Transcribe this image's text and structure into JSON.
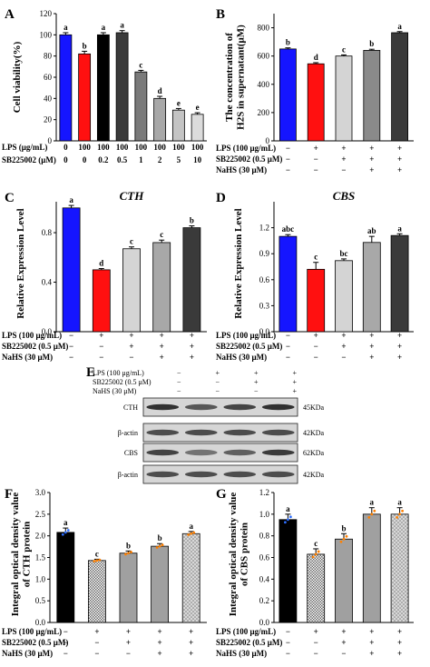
{
  "colors": {
    "blue": "#1515ff",
    "red": "#ff1010",
    "light_gray": "#d4d4d4",
    "mid_gray": "#a8a8a8",
    "dark_gray": "#7a7a7a",
    "charcoal": "#3a3a3a",
    "black": "#000000",
    "orange_points": "#ff8000",
    "blue_points": "#2f6fff"
  },
  "chart_data": [
    {
      "panel": "A",
      "type": "bar",
      "ylabel": "Cell viability(%)",
      "ylim": [
        0,
        120
      ],
      "yticks": [
        0,
        20,
        40,
        60,
        80,
        100,
        120
      ],
      "values": [
        100,
        82,
        100,
        102,
        65,
        40,
        29,
        25
      ],
      "errors": [
        2,
        2.5,
        2,
        2,
        1.5,
        2,
        1.5,
        1.5
      ],
      "letters": [
        "a",
        "b",
        "a",
        "a",
        "c",
        "d",
        "e",
        "e"
      ],
      "colors": [
        "#1515ff",
        "#ff1010",
        "#000000",
        "#3a3a3a",
        "#7a7a7a",
        "#a8a8a8",
        "#c4c4c4",
        "#dcdcdc"
      ],
      "conditions": [
        {
          "label": "LPS (μg/mL)",
          "values": [
            "0",
            "100",
            "100",
            "100",
            "100",
            "100",
            "100",
            "100"
          ]
        },
        {
          "label": "SB225002 (μM)",
          "values": [
            "0",
            "0",
            "0.2",
            "0.5",
            "1",
            "2",
            "5",
            "10"
          ]
        }
      ]
    },
    {
      "panel": "B",
      "type": "bar",
      "ylabel": "The concentration of H2S in supernatant(μM)",
      "ylim": [
        0,
        900
      ],
      "yticks": [
        0,
        200,
        400,
        600,
        800
      ],
      "values": [
        650,
        545,
        600,
        640,
        765
      ],
      "errors": [
        8,
        8,
        8,
        8,
        8
      ],
      "letters": [
        "b",
        "d",
        "c",
        "b",
        "a"
      ],
      "colors": [
        "#1515ff",
        "#ff1010",
        "#d4d4d4",
        "#8a8a8a",
        "#3a3a3a"
      ],
      "conditions": [
        {
          "label": "LPS (100 μg/mL)",
          "values": [
            "−",
            "+",
            "+",
            "+",
            "+"
          ]
        },
        {
          "label": "SB225002 (0.5 μM)",
          "values": [
            "−",
            "−",
            "+",
            "+",
            "+"
          ]
        },
        {
          "label": "NaHS (30 μM)",
          "values": [
            "−",
            "−",
            "−",
            "+",
            "+"
          ]
        }
      ]
    },
    {
      "panel": "C",
      "type": "bar",
      "title": "CTH",
      "ylabel": "Relative Expression Level",
      "ylim": [
        0,
        1.05
      ],
      "yticks": [
        0.0,
        0.4,
        0.8
      ],
      "values": [
        1.0,
        0.5,
        0.67,
        0.72,
        0.84
      ],
      "errors": [
        0.02,
        0.01,
        0.015,
        0.02,
        0.015
      ],
      "letters": [
        "a",
        "d",
        "c",
        "c",
        "b"
      ],
      "colors": [
        "#1515ff",
        "#ff1010",
        "#d4d4d4",
        "#a8a8a8",
        "#3a3a3a"
      ],
      "conditions": [
        {
          "label": "LPS (100 μg/mL)",
          "values": [
            "−",
            "+",
            "+",
            "+",
            "+"
          ]
        },
        {
          "label": "SB225002 (0.5 μM)",
          "values": [
            "−",
            "−",
            "+",
            "+",
            "+"
          ]
        },
        {
          "label": "NaHS (30 μM)",
          "values": [
            "−",
            "−",
            "−",
            "+",
            "+"
          ]
        }
      ]
    },
    {
      "panel": "D",
      "type": "bar",
      "title": "CBS",
      "ylabel": "Relative Expression Level",
      "ylim": [
        0,
        1.5
      ],
      "yticks": [
        0.0,
        0.3,
        0.6,
        0.9,
        1.2
      ],
      "values": [
        1.1,
        0.72,
        0.82,
        1.03,
        1.11
      ],
      "errors": [
        0.02,
        0.08,
        0.02,
        0.07,
        0.02
      ],
      "letters": [
        "abc",
        "c",
        "bc",
        "ab",
        "a"
      ],
      "colors": [
        "#1515ff",
        "#ff1010",
        "#d4d4d4",
        "#a8a8a8",
        "#3a3a3a"
      ],
      "conditions": [
        {
          "label": "LPS (100 μg/mL)",
          "values": [
            "−",
            "+",
            "+",
            "+",
            "+"
          ]
        },
        {
          "label": "SB225002 (0.5 μM)",
          "values": [
            "−",
            "−",
            "+",
            "+",
            "+"
          ]
        },
        {
          "label": "NaHS (30 μM)",
          "values": [
            "−",
            "−",
            "−",
            "+",
            "+"
          ]
        }
      ]
    },
    {
      "panel": "F",
      "type": "bar",
      "ylabel": "Integral optical density value of CTH protein",
      "ylim": [
        0,
        3.0
      ],
      "yticks": [
        0.0,
        0.5,
        1.0,
        1.5,
        2.0,
        2.5,
        3.0
      ],
      "values": [
        2.08,
        1.43,
        1.6,
        1.76,
        2.05
      ],
      "errors": [
        0.1,
        0.03,
        0.05,
        0.06,
        0.05
      ],
      "letters": [
        "a",
        "c",
        "b",
        "b",
        "a"
      ],
      "colors": [
        "#000000",
        "pattern",
        "#a0a0a0",
        "#a0a0a0",
        "pattern"
      ],
      "conditions": [
        {
          "label": "LPS (100 μg/mL)",
          "values": [
            "−",
            "+",
            "+",
            "+",
            "+"
          ]
        },
        {
          "label": "SB225002 (0.5 μM)",
          "values": [
            "−",
            "−",
            "+",
            "+",
            "+"
          ]
        },
        {
          "label": "NaHS (30 μM)",
          "values": [
            "−",
            "−",
            "−",
            "+",
            "+"
          ]
        }
      ]
    },
    {
      "panel": "G",
      "type": "bar",
      "ylabel": "Integral optical density value of CBS protein",
      "ylim": [
        0,
        1.2
      ],
      "yticks": [
        0.0,
        0.2,
        0.4,
        0.6,
        0.8,
        1.0,
        1.2
      ],
      "values": [
        0.95,
        0.63,
        0.77,
        1.0,
        1.0
      ],
      "errors": [
        0.05,
        0.05,
        0.05,
        0.06,
        0.06
      ],
      "letters": [
        "a",
        "c",
        "b",
        "a",
        "a"
      ],
      "colors": [
        "#000000",
        "pattern",
        "#a0a0a0",
        "#a0a0a0",
        "pattern"
      ],
      "conditions": [
        {
          "label": "LPS (100 μg/mL)",
          "values": [
            "−",
            "+",
            "+",
            "+",
            "+"
          ]
        },
        {
          "label": "SB225002 (0.5 μM)",
          "values": [
            "−",
            "−",
            "+",
            "+",
            "+"
          ]
        },
        {
          "label": "NaHS (30 μM)",
          "values": [
            "−",
            "−",
            "−",
            "+",
            "+"
          ]
        }
      ]
    }
  ],
  "blot": {
    "panel": "E",
    "conditions": [
      {
        "label": "LPS (100 μg/mL)",
        "values": [
          "−",
          "+",
          "+",
          "+"
        ]
      },
      {
        "label": "SB225002 (0.5 μM)",
        "values": [
          "−",
          "−",
          "+",
          "+"
        ]
      },
      {
        "label": "NaHS (30 μM)",
        "values": [
          "−",
          "−",
          "−",
          "+"
        ]
      }
    ],
    "rows": [
      {
        "left": "CTH",
        "right": "45KDa",
        "intensity": [
          0.95,
          0.75,
          0.85,
          0.95
        ]
      },
      {
        "left": "β-actin",
        "right": "42KDa",
        "intensity": [
          0.8,
          0.8,
          0.8,
          0.8
        ]
      },
      {
        "left": "CBS",
        "right": "62KDa",
        "intensity": [
          0.85,
          0.6,
          0.7,
          0.9
        ]
      },
      {
        "left": "β-actin",
        "right": "42KDa",
        "intensity": [
          0.8,
          0.8,
          0.8,
          0.8
        ]
      }
    ]
  }
}
